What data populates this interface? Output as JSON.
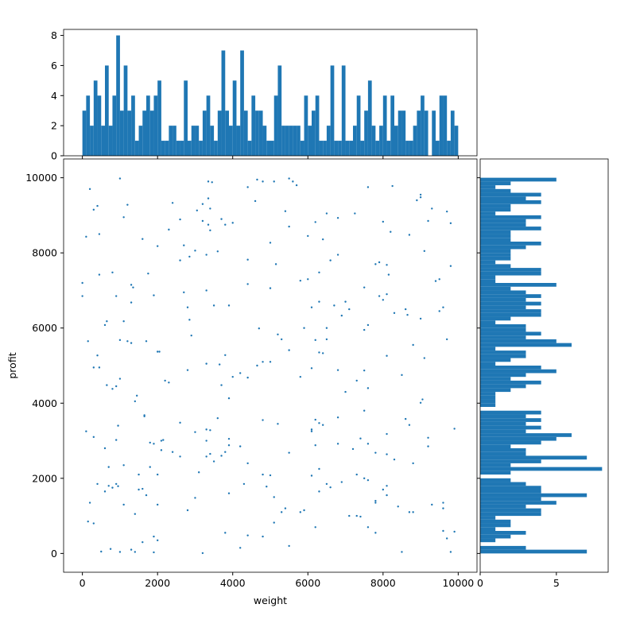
{
  "chart_data": [
    {
      "type": "histogram",
      "orientation": "vertical",
      "color": "#1f77b4",
      "bins": [
        0,
        100,
        200,
        300,
        400,
        500,
        600,
        700,
        800,
        900,
        1000,
        1100,
        1200,
        1300,
        1400,
        1500,
        1600,
        1700,
        1800,
        1900,
        2000,
        2100,
        2200,
        2300,
        2400,
        2500,
        2600,
        2700,
        2800,
        2900,
        3000,
        3100,
        3200,
        3300,
        3400,
        3500,
        3600,
        3700,
        3800,
        3900,
        4000,
        4100,
        4200,
        4300,
        4400,
        4500,
        4600,
        4700,
        4800,
        4900,
        5000,
        5100,
        5200,
        5300,
        5400,
        5500,
        5600,
        5700,
        5800,
        5900,
        6000,
        6100,
        6200,
        6300,
        6400,
        6500,
        6600,
        6700,
        6800,
        6900,
        7000,
        7100,
        7200,
        7300,
        7400,
        7500,
        7600,
        7700,
        7800,
        7900,
        8000,
        8100,
        8200,
        8300,
        8400,
        8500,
        8600,
        8700,
        8800,
        8900,
        9000,
        9100,
        9200,
        9300,
        9400,
        9500,
        9600,
        9700,
        9800,
        9900,
        10000
      ],
      "counts": [
        3,
        4,
        2,
        5,
        4,
        2,
        6,
        2,
        4,
        8,
        3,
        6,
        3,
        4,
        1,
        2,
        3,
        4,
        3,
        4,
        5,
        1,
        1,
        2,
        2,
        1,
        1,
        5,
        1,
        2,
        2,
        1,
        3,
        4,
        2,
        1,
        3,
        7,
        3,
        2,
        5,
        2,
        7,
        3,
        1,
        4,
        3,
        3,
        2,
        1,
        1,
        4,
        6,
        2,
        2,
        2,
        2,
        2,
        1,
        4,
        2,
        3,
        4,
        1,
        1,
        2,
        6,
        1,
        1,
        6,
        1,
        1,
        2,
        4,
        1,
        3,
        5,
        2,
        1,
        2,
        4,
        1,
        4,
        2,
        3,
        3,
        1,
        1,
        2,
        3,
        4,
        3,
        0,
        3,
        1,
        4,
        4,
        1,
        3,
        2
      ],
      "xlim": [
        -500,
        10500
      ],
      "ylim": [
        0,
        8.4
      ],
      "yticks": [
        0,
        2,
        4,
        6,
        8
      ]
    },
    {
      "type": "scatter",
      "color": "#1f77b4",
      "xlabel": "weight",
      "ylabel": "profit",
      "xlim": [
        -500,
        10500
      ],
      "ylim": [
        -500,
        10500
      ],
      "xticks": [
        0,
        2000,
        4000,
        6000,
        8000,
        10000
      ],
      "yticks": [
        0,
        2000,
        4000,
        6000,
        8000,
        10000
      ],
      "x": [
        1000,
        3350,
        3450,
        4650,
        4800,
        5100,
        5500,
        5600,
        5700,
        4400,
        7600,
        8250,
        200,
        1200,
        2400,
        3050,
        3200,
        3350,
        3400,
        4600,
        5400,
        6500,
        6800,
        7250,
        8900,
        9000,
        9000,
        9300,
        9700,
        300,
        400,
        1100,
        100,
        450,
        1600,
        2300,
        2600,
        3200,
        3350,
        3400,
        3700,
        3800,
        4000,
        5000,
        5500,
        6000,
        6200,
        6400,
        8000,
        8200,
        8700,
        9200,
        9800,
        0,
        0,
        450,
        800,
        1300,
        1350,
        1750,
        2000,
        2700,
        2600,
        2850,
        3000,
        3300,
        3600,
        4400,
        4400,
        5000,
        5150,
        5800,
        6000,
        6300,
        6600,
        6800,
        7500,
        7800,
        7900,
        8100,
        8150,
        9100,
        9400,
        9500,
        9800,
        2700,
        3300,
        900,
        600,
        650,
        1100,
        1300,
        1900,
        2800,
        2850,
        2900,
        3500,
        3900,
        4700,
        5200,
        5300,
        5900,
        6100,
        6300,
        6500,
        6700,
        6900,
        7000,
        7100,
        7500,
        7600,
        7900,
        8100,
        8000,
        8600,
        8300,
        8650,
        9000,
        9600,
        9500,
        150,
        300,
        400,
        450,
        1000,
        1200,
        1300,
        1700,
        2000,
        2050,
        2300,
        2800,
        3300,
        3650,
        3800,
        3700,
        4000,
        4200,
        4400,
        4650,
        4800,
        5000,
        5500,
        5800,
        6100,
        6200,
        6300,
        6400,
        6500,
        6800,
        7000,
        7300,
        7500,
        7600,
        8100,
        8500,
        8800,
        9100,
        9700,
        800,
        900,
        1000,
        650,
        1400,
        1450,
        2200,
        3900,
        9000,
        9050,
        7500,
        950,
        1650,
        1650,
        2600,
        3000,
        3300,
        3400,
        3600,
        3900,
        5200,
        4800,
        6100,
        6200,
        6300,
        6400,
        6800,
        7400,
        8100,
        8600,
        8700,
        9200,
        9900,
        100,
        300,
        900,
        1800,
        1900,
        2100,
        2150,
        6100,
        600,
        700,
        1100,
        1800,
        2100,
        2400,
        2600,
        3300,
        3400,
        3500,
        3300,
        3700,
        3800,
        4200,
        4400,
        4800,
        5500,
        6100,
        6200,
        6300,
        6800,
        7200,
        7300,
        7500,
        7600,
        8100,
        8800,
        9200,
        2000,
        1500,
        8300,
        7800,
        3100,
        3900,
        400,
        600,
        700,
        800,
        900,
        950,
        1500,
        1600,
        1700,
        2000,
        2800,
        3000,
        3900,
        4300,
        4900,
        5000,
        5100,
        5300,
        5400,
        5800,
        5900,
        6300,
        6600,
        6900,
        7600,
        7800,
        7800,
        8000,
        8100,
        8100,
        8400,
        8700,
        8800,
        9300,
        9600,
        9600,
        200,
        1100,
        1400,
        6500,
        7300,
        150,
        300,
        500,
        750,
        1000,
        1400,
        1600,
        1900,
        2000,
        1900,
        3200,
        3800,
        4200,
        4400,
        4800,
        5100,
        5500,
        6200,
        7100,
        7400,
        7600,
        7800,
        8500,
        9600,
        9700,
        9800,
        9900,
        1300
      ],
      "y": [
        9980,
        9900,
        9880,
        9950,
        9900,
        9900,
        9980,
        9900,
        9800,
        9750,
        9750,
        9780,
        9700,
        9280,
        9330,
        9130,
        9300,
        9450,
        9180,
        9380,
        9110,
        9050,
        8930,
        9050,
        9400,
        9550,
        9480,
        9180,
        9100,
        9150,
        9250,
        8950,
        8430,
        8500,
        8370,
        8620,
        8890,
        8850,
        8750,
        8600,
        8900,
        8750,
        8800,
        8270,
        8700,
        8450,
        8820,
        8360,
        8830,
        8560,
        8480,
        8850,
        8790,
        7200,
        6850,
        7420,
        7480,
        7150,
        7080,
        7450,
        8180,
        8200,
        7800,
        7900,
        8060,
        7950,
        8040,
        7820,
        7170,
        7060,
        7700,
        7260,
        7300,
        7480,
        7800,
        7950,
        7080,
        7700,
        7750,
        7680,
        7420,
        8050,
        7250,
        7300,
        7650,
        6950,
        7000,
        6850,
        6080,
        6180,
        6180,
        6680,
        6870,
        6550,
        6220,
        5800,
        6600,
        6600,
        5990,
        5830,
        5700,
        6000,
        6550,
        6700,
        6000,
        6600,
        6330,
        6700,
        6500,
        5950,
        6080,
        6850,
        6900,
        6750,
        6500,
        6400,
        6350,
        6250,
        6550,
        6450,
        5650,
        4950,
        5270,
        4950,
        5680,
        5650,
        5600,
        5650,
        5370,
        5370,
        4550,
        4880,
        5050,
        5030,
        5280,
        4480,
        4700,
        4800,
        4680,
        5000,
        5100,
        5100,
        5410,
        4700,
        4930,
        5680,
        5350,
        5330,
        5700,
        4880,
        4300,
        4600,
        4870,
        4400,
        5260,
        4750,
        5550,
        5200,
        5700,
        4380,
        4450,
        4650,
        4480,
        4050,
        4200,
        4600,
        4130,
        4010,
        4100,
        3800,
        3400,
        3650,
        3680,
        3480,
        3230,
        3300,
        3280,
        3600,
        3050,
        3450,
        3550,
        3300,
        3560,
        3470,
        3420,
        3620,
        3060,
        3180,
        3580,
        3420,
        3080,
        3320,
        3250,
        3100,
        3020,
        2950,
        2920,
        3000,
        3020,
        3250,
        2800,
        2300,
        2350,
        2300,
        2750,
        2700,
        2580,
        2580,
        2650,
        2450,
        3000,
        2600,
        2700,
        2850,
        2400,
        2100,
        2680,
        2070,
        2880,
        2250,
        2920,
        2780,
        2100,
        2000,
        2920,
        2640,
        2400,
        2850,
        2100,
        2100,
        2500,
        2680,
        2160,
        2880,
        1850,
        1650,
        1800,
        1750,
        1850,
        1790,
        1700,
        1720,
        1550,
        1300,
        1150,
        1480,
        1600,
        1850,
        1780,
        2080,
        1500,
        1100,
        1200,
        1100,
        1150,
        1650,
        1760,
        1900,
        1950,
        1350,
        1400,
        1700,
        1800,
        1550,
        1250,
        1100,
        1100,
        1300,
        1200,
        1350,
        1350,
        1300,
        1050,
        1850,
        1000,
        850,
        800,
        50,
        120,
        40,
        40,
        300,
        450,
        350,
        30,
        10,
        550,
        150,
        480,
        450,
        820,
        200,
        700,
        1000,
        980,
        700,
        550,
        40,
        600,
        400,
        40,
        580,
        100
      ]
    },
    {
      "type": "histogram",
      "orientation": "horizontal",
      "color": "#1f77b4",
      "bins": [
        0,
        100,
        200,
        300,
        400,
        500,
        600,
        700,
        800,
        900,
        1000,
        1100,
        1200,
        1300,
        1400,
        1500,
        1600,
        1700,
        1800,
        1900,
        2000,
        2100,
        2200,
        2300,
        2400,
        2500,
        2600,
        2700,
        2800,
        2900,
        3000,
        3100,
        3200,
        3300,
        3400,
        3500,
        3600,
        3700,
        3800,
        3900,
        4000,
        4100,
        4200,
        4300,
        4400,
        4500,
        4600,
        4700,
        4800,
        4900,
        5000,
        5100,
        5200,
        5300,
        5400,
        5500,
        5600,
        5700,
        5800,
        5900,
        6000,
        6100,
        6200,
        6300,
        6400,
        6500,
        6600,
        6700,
        6800,
        6900,
        7000,
        7100,
        7200,
        7300,
        7400,
        7500,
        7600,
        7700,
        7800,
        7900,
        8000,
        8100,
        8200,
        8300,
        8400,
        8500,
        8600,
        8700,
        8800,
        8900,
        9000,
        9100,
        9200,
        9300,
        9400,
        9500,
        9600,
        9700,
        9800,
        9900,
        10000
      ],
      "counts": [
        7,
        3,
        0,
        1,
        2,
        3,
        1,
        2,
        2,
        1,
        4,
        4,
        3,
        5,
        4,
        7,
        4,
        4,
        3,
        2,
        0,
        2,
        8,
        2,
        4,
        7,
        3,
        3,
        2,
        4,
        5,
        6,
        3,
        4,
        3,
        4,
        3,
        4,
        0,
        1,
        1,
        1,
        1,
        2,
        3,
        4,
        2,
        3,
        5,
        4,
        1,
        2,
        3,
        3,
        1,
        6,
        5,
        3,
        4,
        3,
        3,
        1,
        2,
        4,
        4,
        3,
        4,
        3,
        4,
        3,
        2,
        5,
        1,
        1,
        4,
        4,
        2,
        1,
        2,
        2,
        2,
        3,
        4,
        2,
        2,
        2,
        4,
        3,
        3,
        4,
        1,
        2,
        2,
        4,
        3,
        4,
        2,
        1,
        2,
        5
      ],
      "xlim": [
        0,
        8.4
      ],
      "ylim": [
        -500,
        10500
      ],
      "xticks": [
        0,
        5
      ]
    }
  ]
}
